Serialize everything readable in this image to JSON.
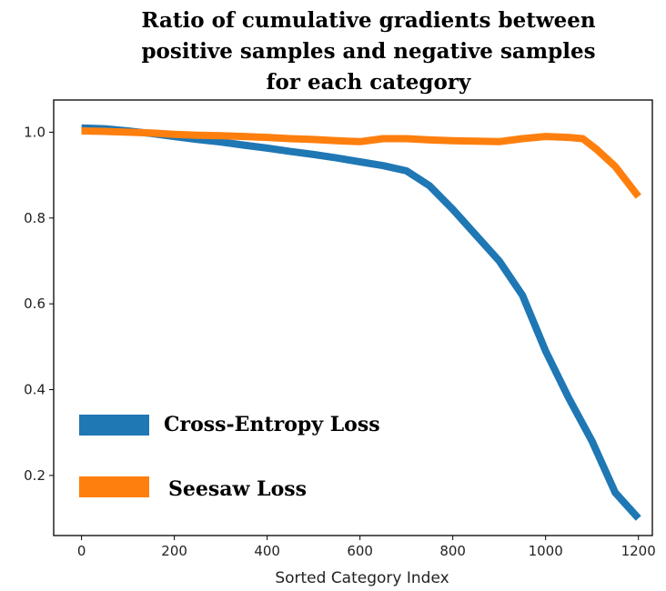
{
  "chart_data": {
    "type": "line",
    "title": [
      "Ratio of cumulative gradients between",
      "positive samples and negative samples",
      "for each category"
    ],
    "xlabel": "Sorted Category Index",
    "ylabel": "",
    "xlim": [
      -60,
      1230
    ],
    "ylim": [
      0.06,
      1.075
    ],
    "xticks": [
      0,
      200,
      400,
      600,
      800,
      1000,
      1200
    ],
    "yticks": [
      0.2,
      0.4,
      0.6,
      0.8,
      1.0
    ],
    "ytick_labels": [
      "0.2",
      "0.4",
      "0.6",
      "0.8",
      "1.0"
    ],
    "grid": false,
    "legend_position": "lower-left",
    "series": [
      {
        "name": "Cross-Entropy Loss",
        "color": "#1f77b4",
        "x": [
          0,
          50,
          100,
          150,
          200,
          250,
          300,
          350,
          400,
          450,
          500,
          550,
          600,
          650,
          700,
          750,
          800,
          850,
          900,
          950,
          1000,
          1050,
          1100,
          1150,
          1200
        ],
        "y": [
          1.01,
          1.008,
          1.003,
          0.997,
          0.99,
          0.983,
          0.977,
          0.97,
          0.963,
          0.955,
          0.948,
          0.94,
          0.931,
          0.922,
          0.91,
          0.875,
          0.82,
          0.76,
          0.7,
          0.62,
          0.49,
          0.38,
          0.28,
          0.16,
          0.1
        ]
      },
      {
        "name": "Seesaw Loss",
        "color": "#ff7f0e",
        "x": [
          0,
          50,
          100,
          150,
          200,
          250,
          300,
          350,
          400,
          450,
          500,
          550,
          600,
          650,
          700,
          750,
          800,
          850,
          900,
          950,
          1000,
          1050,
          1080,
          1110,
          1150,
          1200
        ],
        "y": [
          1.003,
          1.002,
          1.0,
          0.998,
          0.995,
          0.993,
          0.992,
          0.99,
          0.988,
          0.985,
          0.983,
          0.98,
          0.978,
          0.985,
          0.985,
          0.982,
          0.98,
          0.979,
          0.978,
          0.985,
          0.99,
          0.988,
          0.985,
          0.96,
          0.92,
          0.85
        ]
      }
    ]
  }
}
